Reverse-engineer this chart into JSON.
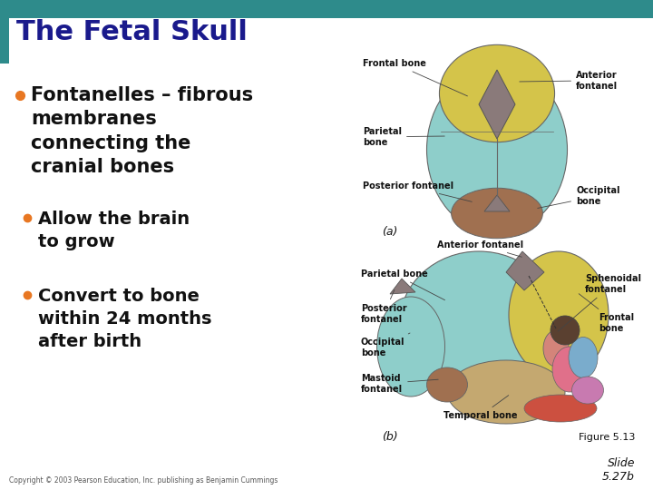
{
  "background_color": "#FFFFFF",
  "header_bar_color": "#2E8B8B",
  "title_text": "The Fetal Skull",
  "title_color": "#1A1A8C",
  "title_fontsize": 22,
  "bullet_color": "#E87722",
  "bullet1_text": "Fontanelles – fibrous\nmembranes\nconnecting the\ncranial bones",
  "bullet1_fontsize": 15,
  "sub_bullet2_text": "Allow the brain\nto grow",
  "sub_bullet2_fontsize": 14,
  "sub_bullet3_text": "Convert to bone\nwithin 24 months\nafter birth",
  "sub_bullet3_fontsize": 14,
  "figure_label_a": "(a)",
  "figure_label_b": "(b)",
  "figure_ref": "Figure 5.13",
  "slide_num": "Slide\n5.27b",
  "copyright_text": "Copyright © 2003 Pearson Education, Inc. publishing as Benjamin Cummings",
  "text_color": "#111111",
  "skull_teal": "#8ECECA",
  "skull_yellow": "#D4C44A",
  "skull_brown": "#A07050",
  "skull_gray": "#8A7A7A",
  "skull_pink": "#D4847A",
  "skull_blue": "#7AACCC",
  "skull_purple": "#C87AB0",
  "skull_red": "#CC5040",
  "skull_tan": "#C4A870",
  "label_fontsize": 7,
  "label_color": "#111111",
  "label_fontweight": "bold"
}
